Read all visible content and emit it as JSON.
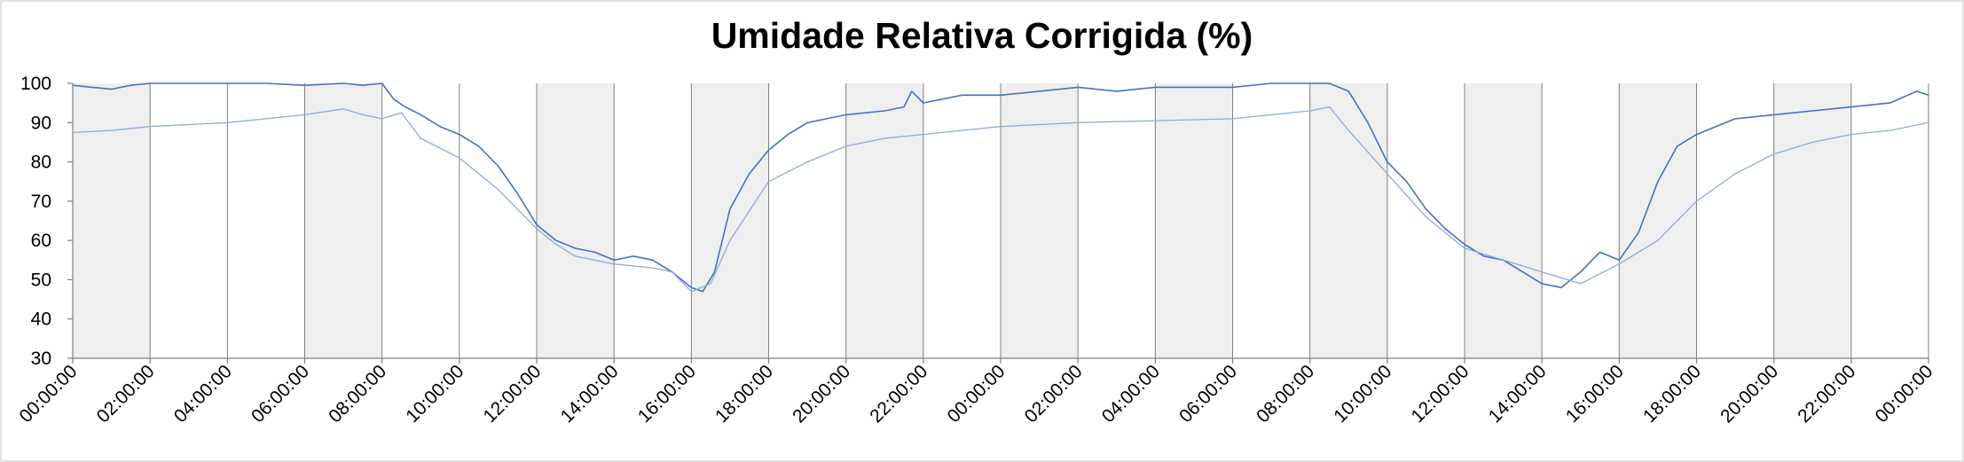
{
  "chart_data": {
    "type": "line",
    "title": "Umidade Relativa Corrigida (%)",
    "xlabel": "",
    "ylabel": "",
    "ylim": [
      30,
      100
    ],
    "yticks": [
      30,
      40,
      50,
      60,
      70,
      80,
      90,
      100
    ],
    "xlim_hours": [
      0,
      48
    ],
    "x_tick_labels": [
      "00:00:00",
      "02:00:00",
      "04:00:00",
      "06:00:00",
      "08:00:00",
      "10:00:00",
      "12:00:00",
      "14:00:00",
      "16:00:00",
      "18:00:00",
      "20:00:00",
      "22:00:00",
      "00:00:00",
      "02:00:00",
      "04:00:00",
      "06:00:00",
      "08:00:00",
      "10:00:00",
      "12:00:00",
      "14:00:00",
      "16:00:00",
      "18:00:00",
      "20:00:00",
      "22:00:00",
      "00:00:00"
    ],
    "shaded_intervals_hours": [
      [
        0,
        2
      ],
      [
        6,
        8
      ],
      [
        12,
        14
      ],
      [
        16,
        18
      ],
      [
        20,
        22
      ],
      [
        24,
        26
      ],
      [
        28,
        30
      ],
      [
        32,
        34
      ],
      [
        36,
        38
      ],
      [
        40,
        42
      ],
      [
        44,
        46
      ]
    ],
    "grid": "vertical lines every 2 hours",
    "legend": "none",
    "series": [
      {
        "color": "#4472c4",
        "x_hours": [
          0,
          0.5,
          1,
          1.5,
          2,
          3,
          4,
          5,
          6,
          7,
          7.5,
          8,
          8.3,
          8.6,
          9,
          9.5,
          10,
          10.5,
          11,
          11.5,
          12,
          12.5,
          13,
          13.5,
          14,
          14.5,
          15,
          15.5,
          16,
          16.3,
          16.6,
          17,
          17.5,
          18,
          18.5,
          19,
          19.5,
          20,
          21,
          21.5,
          21.7,
          22,
          23,
          24,
          25,
          26,
          27,
          28,
          29,
          30,
          31,
          32,
          32.5,
          33,
          33.5,
          34,
          34.5,
          35,
          35.5,
          36,
          36.5,
          37,
          37.5,
          38,
          38.5,
          39,
          39.5,
          40,
          40.5,
          41,
          41.5,
          42,
          43,
          44,
          45,
          46,
          47,
          47.7,
          48
        ],
        "y": [
          99.5,
          99,
          98.5,
          99.5,
          100,
          100,
          100,
          100,
          99.5,
          100,
          99.5,
          100,
          96,
          94,
          92,
          89,
          87,
          84,
          79,
          72,
          64,
          60,
          58,
          57,
          55,
          56,
          55,
          52,
          48,
          47,
          52,
          68,
          77,
          83,
          87,
          90,
          91,
          92,
          93,
          94,
          98,
          95,
          97,
          97,
          98,
          99,
          98,
          99,
          99,
          99,
          100,
          100,
          100,
          98,
          90,
          80,
          75,
          68,
          63,
          59,
          56,
          55,
          52,
          49,
          48,
          52,
          57,
          55,
          62,
          75,
          84,
          87,
          91,
          92,
          93,
          94,
          95,
          98,
          97
        ]
      },
      {
        "color": "#8eaadb",
        "x_hours": [
          0,
          1,
          2,
          3,
          4,
          5,
          6,
          7,
          7.5,
          8,
          8.5,
          9,
          10,
          11,
          12,
          12.5,
          13,
          14,
          15,
          15.5,
          16,
          16.5,
          17,
          18,
          19,
          20,
          21,
          22,
          23,
          24,
          26,
          28,
          30,
          32,
          32.5,
          33,
          34,
          35,
          36,
          37,
          38,
          39,
          40,
          41,
          42,
          43,
          44,
          45,
          46,
          47,
          48
        ],
        "y": [
          87.5,
          88,
          89,
          89.5,
          90,
          91,
          92,
          93.5,
          92,
          91,
          92.5,
          86,
          81,
          73,
          63,
          59,
          56,
          54,
          53,
          52,
          47,
          49,
          60,
          75,
          80,
          84,
          86,
          87,
          88,
          89,
          90,
          90.5,
          91,
          93,
          94,
          88,
          77,
          66,
          58,
          55,
          52,
          49,
          54,
          60,
          70,
          77,
          82,
          85,
          87,
          88,
          90
        ]
      }
    ]
  }
}
